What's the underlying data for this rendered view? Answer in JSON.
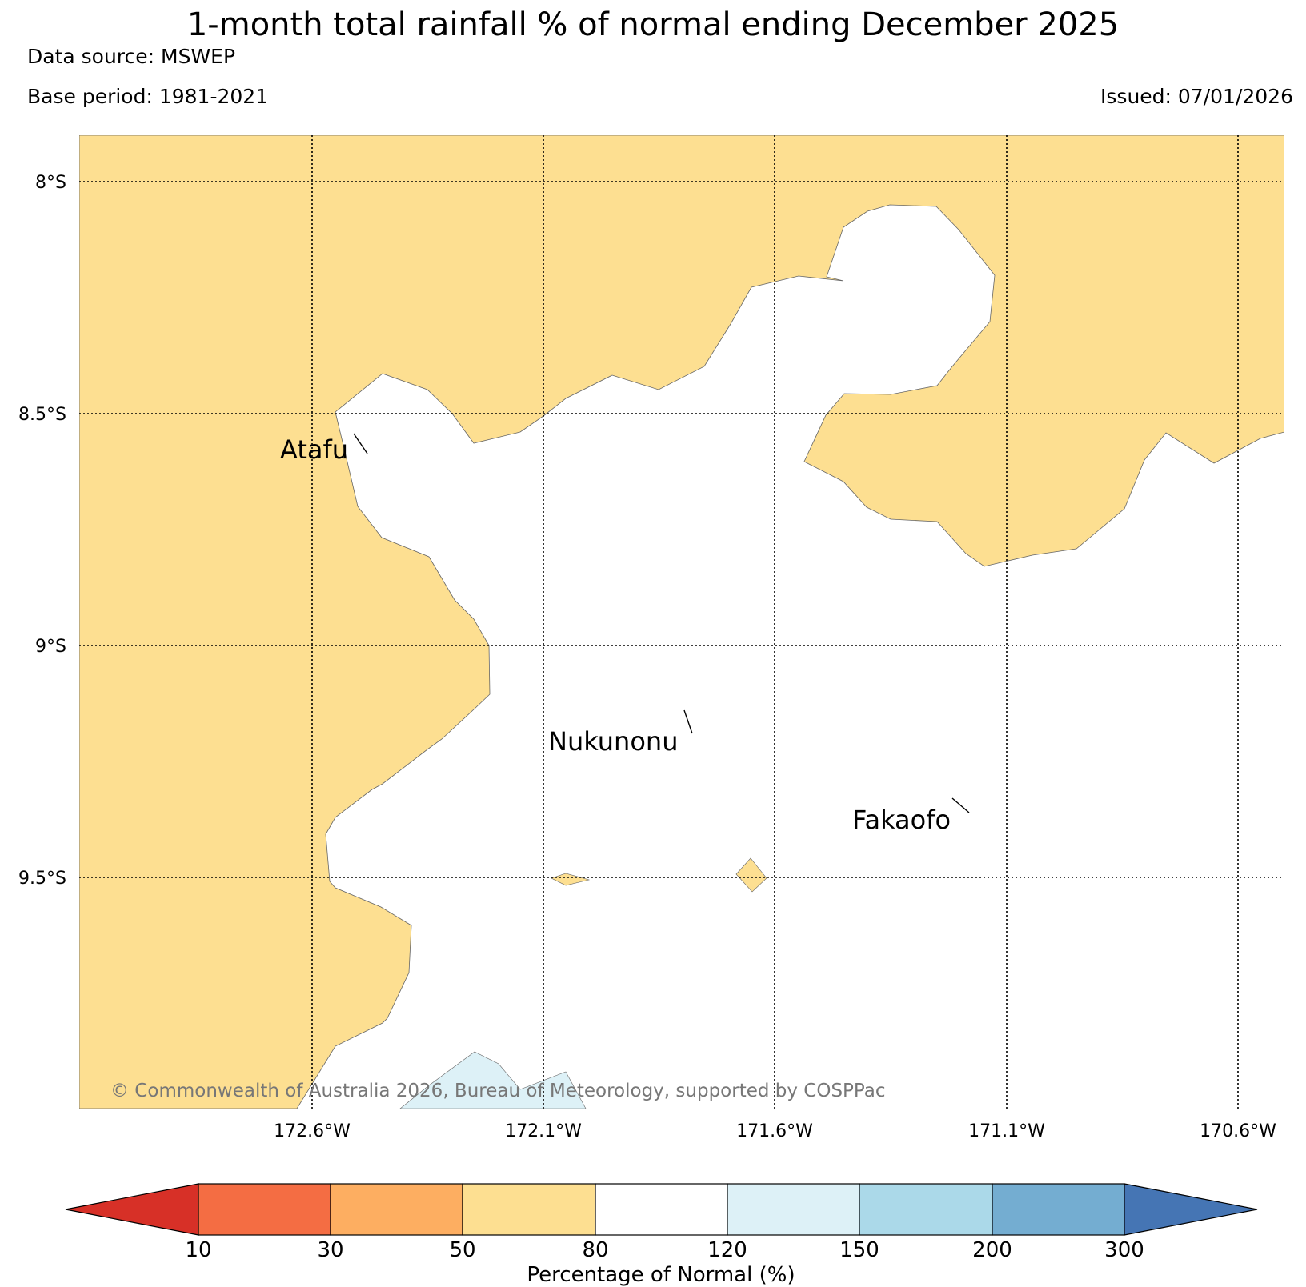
{
  "title": "1-month total rainfall % of normal ending December 2025",
  "data_source": "Data source: MSWEP",
  "base_period": "Base period: 1981-2021",
  "issued": "Issued: 07/01/2026",
  "map": {
    "lon_labels": [
      "172.6°W",
      "172.1°W",
      "171.6°W",
      "171.1°W",
      "170.6°W"
    ],
    "lat_labels": [
      "8°S",
      "8.5°S",
      "9°S",
      "9.5°S"
    ],
    "places": [
      {
        "name": "Atafu"
      },
      {
        "name": "Nukunonu"
      },
      {
        "name": "Fakaofo"
      }
    ],
    "colors": {
      "band_50_80": "#fddf91",
      "band_80_120": "#ffffff",
      "band_120_150": "#ddf1f7"
    },
    "copyright": "© Commonwealth of Australia 2026, Bureau of Meteorology, supported by COSPPac"
  },
  "colorbar": {
    "label": "Percentage of Normal (%)",
    "ticks": [
      "10",
      "30",
      "50",
      "80",
      "120",
      "150",
      "200",
      "300"
    ],
    "colors": [
      "#d73027",
      "#f46d43",
      "#fdae61",
      "#fddf91",
      "#ffffff",
      "#ddf1f7",
      "#abd9e9",
      "#74add1",
      "#4575b4"
    ]
  }
}
